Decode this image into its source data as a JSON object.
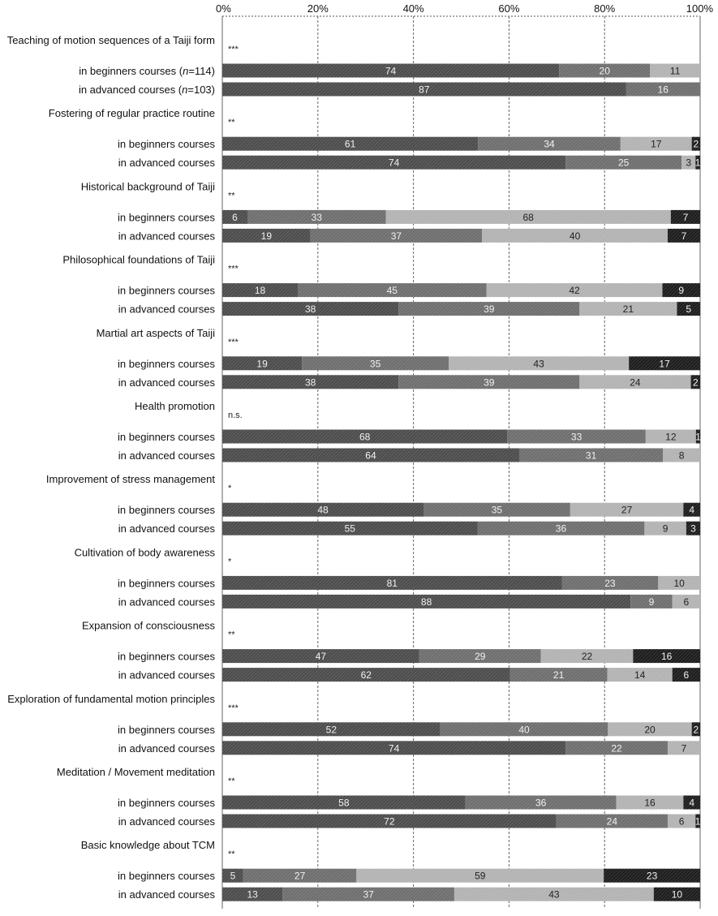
{
  "chart_data": {
    "type": "bar",
    "orientation": "horizontal",
    "stacked": true,
    "percent": true,
    "xlim": [
      0,
      100
    ],
    "x_ticks": [
      "0%",
      "20%",
      "40%",
      "60%",
      "80%",
      "100%"
    ],
    "grid": "vertical dashed",
    "segment_colors": [
      "#4d4d4d",
      "#6f6f6f",
      "#b3b3b3",
      "#1e1e1e"
    ],
    "groups": [
      {
        "title": "Teaching of motion sequences of a Taiji form",
        "significance": "***",
        "rows": [
          {
            "label": "in beginners courses (n=114)",
            "values": [
              74,
              20,
              11,
              0
            ]
          },
          {
            "label": "in advanced courses (n=103)",
            "values": [
              87,
              16,
              0,
              0
            ]
          }
        ]
      },
      {
        "title": "Fostering of regular practice routine",
        "significance": "**",
        "rows": [
          {
            "label": "in beginners courses",
            "values": [
              61,
              34,
              17,
              2
            ]
          },
          {
            "label": "in advanced courses",
            "values": [
              74,
              25,
              3,
              1
            ]
          }
        ]
      },
      {
        "title": "Historical background of Taiji",
        "significance": "**",
        "rows": [
          {
            "label": "in beginners courses",
            "values": [
              6,
              33,
              68,
              7
            ]
          },
          {
            "label": "in advanced courses",
            "values": [
              19,
              37,
              40,
              7
            ]
          }
        ]
      },
      {
        "title": "Philosophical foundations of Taiji",
        "significance": "***",
        "rows": [
          {
            "label": "in beginners courses",
            "values": [
              18,
              45,
              42,
              9
            ]
          },
          {
            "label": "in advanced courses",
            "values": [
              38,
              39,
              21,
              5
            ]
          }
        ]
      },
      {
        "title": "Martial art aspects of Taiji",
        "significance": "***",
        "rows": [
          {
            "label": "in beginners courses",
            "values": [
              19,
              35,
              43,
              17
            ]
          },
          {
            "label": "in advanced courses",
            "values": [
              38,
              39,
              24,
              2
            ]
          }
        ]
      },
      {
        "title": "Health promotion",
        "significance": "n.s.",
        "rows": [
          {
            "label": "in beginners courses",
            "values": [
              68,
              33,
              12,
              1
            ]
          },
          {
            "label": "in advanced courses",
            "values": [
              64,
              31,
              8,
              0
            ]
          }
        ]
      },
      {
        "title": "Improvement of stress management",
        "significance": "*",
        "rows": [
          {
            "label": "in beginners courses",
            "values": [
              48,
              35,
              27,
              4
            ]
          },
          {
            "label": "in advanced courses",
            "values": [
              55,
              36,
              9,
              3
            ]
          }
        ]
      },
      {
        "title": "Cultivation of body awareness",
        "significance": "*",
        "rows": [
          {
            "label": "in beginners courses",
            "values": [
              81,
              23,
              10,
              0
            ]
          },
          {
            "label": "in advanced courses",
            "values": [
              88,
              9,
              6,
              0
            ]
          }
        ]
      },
      {
        "title": "Expansion of consciousness",
        "significance": "**",
        "rows": [
          {
            "label": "in beginners courses",
            "values": [
              47,
              29,
              22,
              16
            ]
          },
          {
            "label": "in advanced courses",
            "values": [
              62,
              21,
              14,
              6
            ]
          }
        ]
      },
      {
        "title": "Exploration of fundamental motion principles",
        "significance": "***",
        "rows": [
          {
            "label": "in beginners courses",
            "values": [
              52,
              40,
              20,
              2
            ]
          },
          {
            "label": "in advanced courses",
            "values": [
              74,
              22,
              7,
              0
            ]
          }
        ]
      },
      {
        "title": "Meditation / Movement meditation",
        "significance": "**",
        "rows": [
          {
            "label": "in beginners courses",
            "values": [
              58,
              36,
              16,
              4
            ]
          },
          {
            "label": "in advanced courses",
            "values": [
              72,
              24,
              6,
              1
            ]
          }
        ]
      },
      {
        "title": "Basic knowledge about TCM",
        "significance": "**",
        "rows": [
          {
            "label": "in beginners courses",
            "values": [
              5,
              27,
              59,
              23
            ]
          },
          {
            "label": "in advanced courses",
            "values": [
              13,
              37,
              43,
              10
            ]
          }
        ]
      }
    ]
  }
}
